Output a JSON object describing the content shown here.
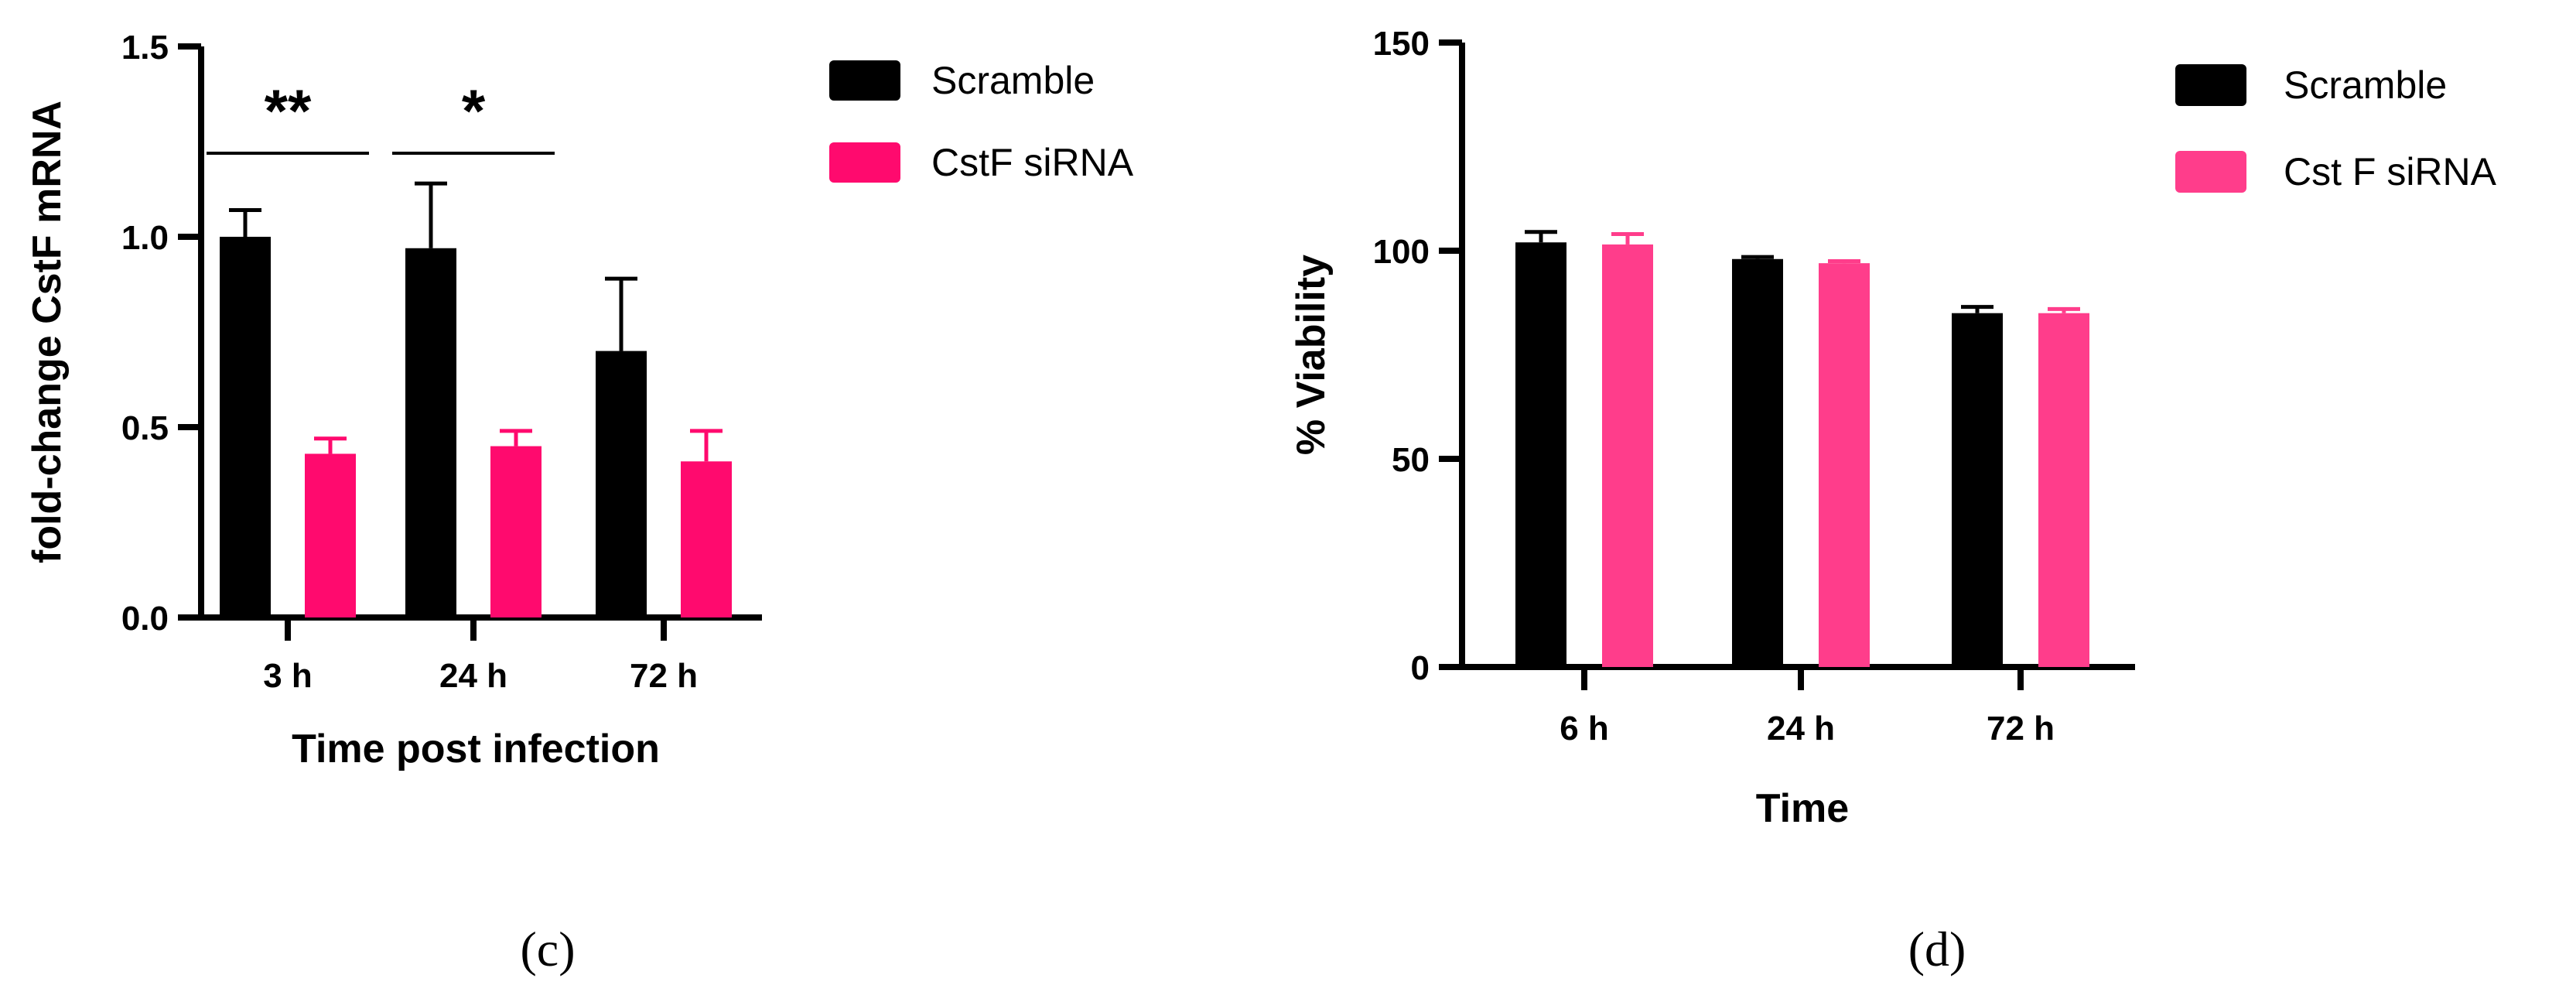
{
  "chart_data": [
    {
      "type": "bar",
      "panel_label": "(c)",
      "categories": [
        "3 h",
        "24 h",
        "72 h"
      ],
      "series": [
        {
          "name": "Scramble",
          "color": "#000000",
          "values": [
            1.0,
            0.97,
            0.7
          ],
          "errors": [
            0.07,
            0.17,
            0.19
          ]
        },
        {
          "name": "CstF siRNA",
          "color": "#ff0a6e",
          "values": [
            0.43,
            0.45,
            0.41
          ],
          "errors": [
            0.04,
            0.04,
            0.08
          ]
        }
      ],
      "xlabel": "Time post infection",
      "ylabel": "fold-change CstF mRNA",
      "ylim": [
        0,
        1.5
      ],
      "yticks": [
        0,
        0.5,
        1,
        1.5
      ],
      "ytick_labels": [
        "0.0",
        "0.5",
        "1.0",
        "1.5"
      ],
      "annotations": [
        {
          "category": "3 h",
          "text": "**"
        },
        {
          "category": "24 h",
          "text": "*"
        }
      ],
      "legend": "top-right",
      "grid": false
    },
    {
      "type": "bar",
      "panel_label": "(d)",
      "categories": [
        "6 h",
        "24 h",
        "72 h"
      ],
      "series": [
        {
          "name": "Scramble",
          "color": "#000000",
          "values": [
            102,
            98,
            85
          ],
          "errors": [
            2.5,
            0.5,
            1.5
          ]
        },
        {
          "name": "Cst F siRNA",
          "color": "#ff3d8b",
          "values": [
            101.5,
            97,
            85
          ],
          "errors": [
            2.5,
            0.5,
            1.0
          ]
        }
      ],
      "xlabel": "Time",
      "ylabel": "% Viability",
      "ylim": [
        0,
        150
      ],
      "yticks": [
        0,
        50,
        100,
        150
      ],
      "ytick_labels": [
        "0",
        "50",
        "100",
        "150"
      ],
      "annotations": [],
      "legend": "top-right",
      "grid": false
    }
  ]
}
